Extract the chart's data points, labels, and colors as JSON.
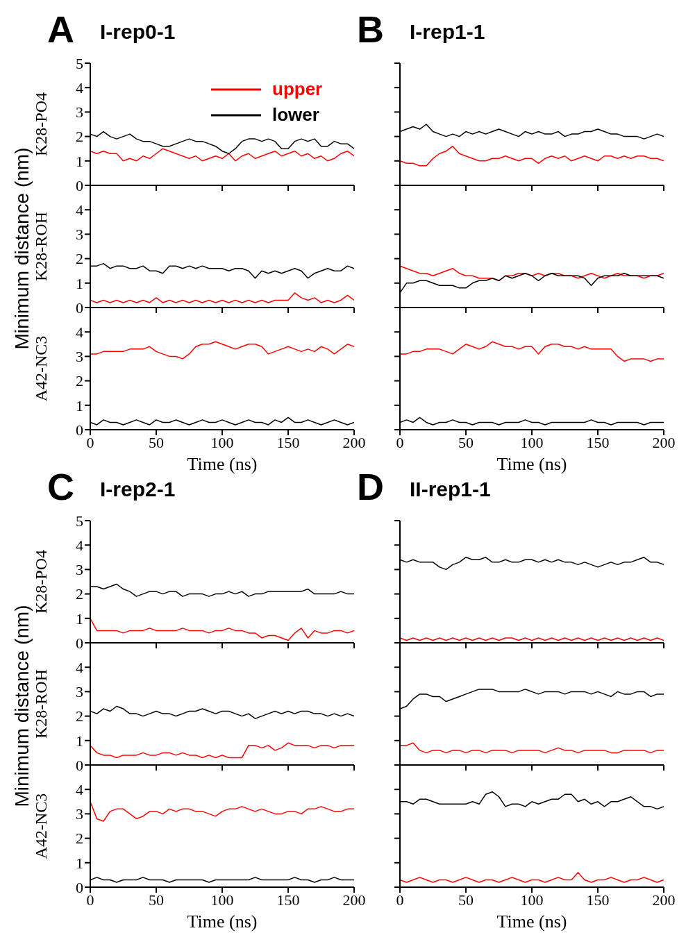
{
  "chart_data": [
    {
      "type": "line",
      "title": "I-rep0-1",
      "annotations": [
        "A",
        "Minimum distance (nm)"
      ],
      "ylabel": "K28-PO4",
      "legend": "top right",
      "tick_labels": "y",
      "x": [
        0,
        5,
        10,
        15,
        20,
        25,
        30,
        35,
        40,
        45,
        50,
        55,
        60,
        65,
        70,
        75,
        80,
        85,
        90,
        95,
        100,
        105,
        110,
        115,
        120,
        125,
        130,
        135,
        140,
        145,
        150,
        155,
        160,
        165,
        170,
        175,
        180,
        185,
        190,
        195,
        200
      ],
      "xlim": [
        0,
        200
      ],
      "xticks": [
        0,
        50,
        100,
        150,
        200
      ],
      "ylim": [
        0,
        5
      ],
      "yticks": [
        0,
        1,
        2,
        3,
        4,
        5
      ],
      "series": [
        {
          "name": "upper",
          "color": "#ff0000",
          "values": [
            1.4,
            1.3,
            1.4,
            1.3,
            1.3,
            1.0,
            1.1,
            1.0,
            1.2,
            1.1,
            1.3,
            1.5,
            1.4,
            1.3,
            1.2,
            1.1,
            1.2,
            1.0,
            1.1,
            1.2,
            1.1,
            1.3,
            1.0,
            1.2,
            1.3,
            1.1,
            1.2,
            1.3,
            1.4,
            1.2,
            1.3,
            1.4,
            1.2,
            1.3,
            1.1,
            1.2,
            1.0,
            1.1,
            1.3,
            1.4,
            1.2
          ]
        },
        {
          "name": "lower",
          "color": "#000000",
          "values": [
            2.1,
            2.0,
            2.2,
            2.0,
            1.9,
            2.0,
            2.1,
            1.9,
            1.8,
            1.8,
            1.7,
            1.6,
            1.6,
            1.7,
            1.8,
            1.9,
            1.8,
            1.8,
            1.7,
            1.6,
            1.4,
            1.3,
            1.5,
            1.8,
            1.9,
            1.9,
            1.8,
            1.9,
            1.8,
            1.5,
            1.5,
            1.8,
            1.9,
            1.8,
            1.9,
            1.6,
            1.6,
            1.8,
            1.7,
            1.7,
            1.5
          ]
        }
      ]
    },
    {
      "type": "line",
      "ylabel": "K28-ROH",
      "tick_labels": "y",
      "x": [
        0,
        5,
        10,
        15,
        20,
        25,
        30,
        35,
        40,
        45,
        50,
        55,
        60,
        65,
        70,
        75,
        80,
        85,
        90,
        95,
        100,
        105,
        110,
        115,
        120,
        125,
        130,
        135,
        140,
        145,
        150,
        155,
        160,
        165,
        170,
        175,
        180,
        185,
        190,
        195,
        200
      ],
      "xlim": [
        0,
        200
      ],
      "xticks": [
        0,
        50,
        100,
        150,
        200
      ],
      "ylim": [
        0,
        5
      ],
      "yticks": [
        0,
        1,
        2,
        3,
        4
      ],
      "series": [
        {
          "color": "#ff0000",
          "values": [
            0.3,
            0.2,
            0.3,
            0.2,
            0.3,
            0.2,
            0.3,
            0.2,
            0.3,
            0.2,
            0.4,
            0.2,
            0.3,
            0.2,
            0.3,
            0.2,
            0.3,
            0.2,
            0.3,
            0.2,
            0.3,
            0.2,
            0.3,
            0.2,
            0.3,
            0.2,
            0.3,
            0.2,
            0.3,
            0.3,
            0.3,
            0.6,
            0.4,
            0.3,
            0.4,
            0.2,
            0.3,
            0.2,
            0.3,
            0.5,
            0.3
          ]
        },
        {
          "color": "#000000",
          "values": [
            1.7,
            1.7,
            1.8,
            1.6,
            1.7,
            1.7,
            1.6,
            1.6,
            1.7,
            1.5,
            1.5,
            1.4,
            1.7,
            1.7,
            1.6,
            1.7,
            1.6,
            1.7,
            1.6,
            1.6,
            1.6,
            1.5,
            1.6,
            1.6,
            1.5,
            1.2,
            1.5,
            1.4,
            1.5,
            1.4,
            1.5,
            1.6,
            1.5,
            1.2,
            1.4,
            1.5,
            1.6,
            1.5,
            1.5,
            1.7,
            1.6
          ]
        }
      ]
    },
    {
      "type": "line",
      "ylabel": "A42-NC3",
      "xlabel": "Time (ns)",
      "x": [
        0,
        5,
        10,
        15,
        20,
        25,
        30,
        35,
        40,
        45,
        50,
        55,
        60,
        65,
        70,
        75,
        80,
        85,
        90,
        95,
        100,
        105,
        110,
        115,
        120,
        125,
        130,
        135,
        140,
        145,
        150,
        155,
        160,
        165,
        170,
        175,
        180,
        185,
        190,
        195,
        200
      ],
      "xlim": [
        0,
        200
      ],
      "xticks": [
        0,
        50,
        100,
        150,
        200
      ],
      "ylim": [
        0,
        5
      ],
      "yticks": [
        0,
        1,
        2,
        3,
        4
      ],
      "series": [
        {
          "color": "#ff0000",
          "values": [
            3.1,
            3.1,
            3.2,
            3.2,
            3.2,
            3.2,
            3.3,
            3.3,
            3.3,
            3.4,
            3.2,
            3.1,
            3.0,
            3.0,
            2.9,
            3.1,
            3.4,
            3.5,
            3.5,
            3.6,
            3.5,
            3.4,
            3.3,
            3.4,
            3.5,
            3.5,
            3.4,
            3.1,
            3.2,
            3.3,
            3.4,
            3.3,
            3.2,
            3.3,
            3.2,
            3.4,
            3.3,
            3.1,
            3.3,
            3.5,
            3.4
          ]
        },
        {
          "color": "#000000",
          "values": [
            0.3,
            0.2,
            0.4,
            0.3,
            0.3,
            0.2,
            0.3,
            0.4,
            0.3,
            0.2,
            0.4,
            0.3,
            0.3,
            0.4,
            0.3,
            0.2,
            0.3,
            0.4,
            0.3,
            0.3,
            0.4,
            0.3,
            0.2,
            0.3,
            0.4,
            0.3,
            0.3,
            0.2,
            0.4,
            0.3,
            0.5,
            0.3,
            0.3,
            0.4,
            0.3,
            0.2,
            0.3,
            0.4,
            0.3,
            0.2,
            0.3
          ]
        }
      ]
    },
    {
      "type": "line",
      "title": "I-rep1-1",
      "annotations": [
        "B"
      ],
      "tick_labels": false,
      "x": [
        0,
        5,
        10,
        15,
        20,
        25,
        30,
        35,
        40,
        45,
        50,
        55,
        60,
        65,
        70,
        75,
        80,
        85,
        90,
        95,
        100,
        105,
        110,
        115,
        120,
        125,
        130,
        135,
        140,
        145,
        150,
        155,
        160,
        165,
        170,
        175,
        180,
        185,
        190,
        195,
        200
      ],
      "xlim": [
        0,
        200
      ],
      "xticks": [
        0,
        50,
        100,
        150,
        200
      ],
      "ylim": [
        0,
        5
      ],
      "yticks": [
        0,
        1,
        2,
        3,
        4,
        5
      ],
      "series": [
        {
          "color": "#ff0000",
          "values": [
            1.0,
            0.9,
            0.9,
            0.8,
            0.8,
            1.1,
            1.3,
            1.4,
            1.6,
            1.3,
            1.2,
            1.1,
            1.0,
            1.0,
            1.1,
            1.1,
            1.2,
            1.1,
            1.0,
            1.1,
            1.1,
            0.9,
            1.1,
            1.2,
            1.1,
            1.2,
            1.0,
            1.1,
            1.2,
            1.1,
            1.0,
            1.2,
            1.2,
            1.1,
            1.2,
            1.1,
            1.2,
            1.2,
            1.1,
            1.1,
            1.0
          ]
        },
        {
          "color": "#000000",
          "values": [
            2.2,
            2.3,
            2.4,
            2.3,
            2.5,
            2.2,
            2.1,
            2.0,
            2.1,
            2.0,
            2.2,
            2.1,
            2.2,
            2.1,
            2.2,
            2.3,
            2.2,
            2.1,
            2.0,
            2.2,
            2.1,
            2.2,
            2.1,
            2.1,
            2.2,
            2.0,
            2.1,
            2.1,
            2.2,
            2.2,
            2.3,
            2.2,
            2.1,
            2.1,
            2.0,
            2.0,
            2.0,
            1.9,
            2.0,
            2.1,
            2.0
          ]
        }
      ]
    },
    {
      "type": "line",
      "tick_labels": false,
      "x": [
        0,
        5,
        10,
        15,
        20,
        25,
        30,
        35,
        40,
        45,
        50,
        55,
        60,
        65,
        70,
        75,
        80,
        85,
        90,
        95,
        100,
        105,
        110,
        115,
        120,
        125,
        130,
        135,
        140,
        145,
        150,
        155,
        160,
        165,
        170,
        175,
        180,
        185,
        190,
        195,
        200
      ],
      "xlim": [
        0,
        200
      ],
      "xticks": [
        0,
        50,
        100,
        150,
        200
      ],
      "ylim": [
        0,
        5
      ],
      "yticks": [
        0,
        1,
        2,
        3,
        4,
        5
      ],
      "series": [
        {
          "color": "#ff0000",
          "values": [
            1.7,
            1.6,
            1.5,
            1.4,
            1.4,
            1.3,
            1.4,
            1.5,
            1.6,
            1.4,
            1.3,
            1.3,
            1.2,
            1.2,
            1.2,
            1.1,
            1.3,
            1.3,
            1.4,
            1.4,
            1.3,
            1.4,
            1.3,
            1.4,
            1.4,
            1.3,
            1.3,
            1.2,
            1.3,
            1.4,
            1.3,
            1.2,
            1.3,
            1.4,
            1.3,
            1.3,
            1.3,
            1.2,
            1.3,
            1.3,
            1.4
          ]
        },
        {
          "color": "#000000",
          "values": [
            0.6,
            1.0,
            1.0,
            1.1,
            1.1,
            1.0,
            0.9,
            0.9,
            0.9,
            0.8,
            0.8,
            1.0,
            1.1,
            1.1,
            1.2,
            1.1,
            1.3,
            1.2,
            1.3,
            1.4,
            1.3,
            1.1,
            1.3,
            1.4,
            1.3,
            1.3,
            1.3,
            1.3,
            1.2,
            0.9,
            1.2,
            1.3,
            1.3,
            1.3,
            1.4,
            1.3,
            1.3,
            1.3,
            1.3,
            1.3,
            1.2
          ]
        }
      ]
    },
    {
      "type": "line",
      "xlabel": "Time (ns)",
      "tick_labels": "x",
      "x": [
        0,
        5,
        10,
        15,
        20,
        25,
        30,
        35,
        40,
        45,
        50,
        55,
        60,
        65,
        70,
        75,
        80,
        85,
        90,
        95,
        100,
        105,
        110,
        115,
        120,
        125,
        130,
        135,
        140,
        145,
        150,
        155,
        160,
        165,
        170,
        175,
        180,
        185,
        190,
        195,
        200
      ],
      "xlim": [
        0,
        200
      ],
      "xticks": [
        0,
        50,
        100,
        150,
        200
      ],
      "ylim": [
        0,
        5
      ],
      "yticks": [
        0,
        1,
        2,
        3,
        4,
        5
      ],
      "series": [
        {
          "color": "#ff0000",
          "values": [
            3.1,
            3.1,
            3.2,
            3.2,
            3.3,
            3.3,
            3.3,
            3.2,
            3.1,
            3.3,
            3.5,
            3.4,
            3.3,
            3.4,
            3.6,
            3.5,
            3.4,
            3.4,
            3.3,
            3.4,
            3.4,
            3.1,
            3.4,
            3.5,
            3.5,
            3.4,
            3.4,
            3.3,
            3.4,
            3.3,
            3.3,
            3.3,
            3.3,
            3.0,
            2.8,
            2.9,
            2.9,
            2.9,
            2.8,
            2.9,
            2.9
          ]
        },
        {
          "color": "#000000",
          "values": [
            0.3,
            0.4,
            0.3,
            0.5,
            0.3,
            0.2,
            0.3,
            0.3,
            0.4,
            0.3,
            0.3,
            0.2,
            0.3,
            0.3,
            0.3,
            0.2,
            0.3,
            0.3,
            0.3,
            0.4,
            0.3,
            0.3,
            0.2,
            0.3,
            0.3,
            0.3,
            0.3,
            0.3,
            0.3,
            0.4,
            0.3,
            0.3,
            0.2,
            0.3,
            0.3,
            0.3,
            0.3,
            0.2,
            0.3,
            0.3,
            0.3
          ]
        }
      ]
    },
    {
      "type": "line",
      "title": "I-rep2-1",
      "annotations": [
        "C",
        "Minimum distance (nm)"
      ],
      "ylabel": "K28-PO4",
      "tick_labels": "y",
      "x": [
        0,
        5,
        10,
        15,
        20,
        25,
        30,
        35,
        40,
        45,
        50,
        55,
        60,
        65,
        70,
        75,
        80,
        85,
        90,
        95,
        100,
        105,
        110,
        115,
        120,
        125,
        130,
        135,
        140,
        145,
        150,
        155,
        160,
        165,
        170,
        175,
        180,
        185,
        190,
        195,
        200
      ],
      "xlim": [
        0,
        200
      ],
      "xticks": [
        0,
        50,
        100,
        150,
        200
      ],
      "ylim": [
        0,
        5
      ],
      "yticks": [
        0,
        1,
        2,
        3,
        4,
        5
      ],
      "series": [
        {
          "color": "#ff0000",
          "values": [
            1.0,
            0.5,
            0.5,
            0.5,
            0.5,
            0.4,
            0.5,
            0.5,
            0.5,
            0.6,
            0.5,
            0.5,
            0.5,
            0.5,
            0.6,
            0.5,
            0.5,
            0.5,
            0.4,
            0.5,
            0.5,
            0.6,
            0.5,
            0.5,
            0.4,
            0.4,
            0.2,
            0.3,
            0.3,
            0.2,
            0.1,
            0.4,
            0.6,
            0.2,
            0.5,
            0.4,
            0.4,
            0.5,
            0.5,
            0.4,
            0.5
          ]
        },
        {
          "color": "#000000",
          "values": [
            2.3,
            2.3,
            2.2,
            2.3,
            2.4,
            2.2,
            2.1,
            1.9,
            2.0,
            2.1,
            2.1,
            2.0,
            2.1,
            2.1,
            1.9,
            2.0,
            2.0,
            2.0,
            1.9,
            2.0,
            2.0,
            2.1,
            2.0,
            2.1,
            1.9,
            2.0,
            2.0,
            2.1,
            2.1,
            2.1,
            2.1,
            2.1,
            2.1,
            2.2,
            2.0,
            2.0,
            2.0,
            2.0,
            2.1,
            2.0,
            2.0
          ]
        }
      ]
    },
    {
      "type": "line",
      "ylabel": "K28-ROH",
      "tick_labels": "y",
      "x": [
        0,
        5,
        10,
        15,
        20,
        25,
        30,
        35,
        40,
        45,
        50,
        55,
        60,
        65,
        70,
        75,
        80,
        85,
        90,
        95,
        100,
        105,
        110,
        115,
        120,
        125,
        130,
        135,
        140,
        145,
        150,
        155,
        160,
        165,
        170,
        175,
        180,
        185,
        190,
        195,
        200
      ],
      "xlim": [
        0,
        200
      ],
      "xticks": [
        0,
        50,
        100,
        150,
        200
      ],
      "ylim": [
        0,
        5
      ],
      "yticks": [
        0,
        1,
        2,
        3,
        4
      ],
      "series": [
        {
          "color": "#ff0000",
          "values": [
            0.8,
            0.5,
            0.4,
            0.4,
            0.3,
            0.4,
            0.4,
            0.4,
            0.5,
            0.4,
            0.4,
            0.5,
            0.5,
            0.4,
            0.5,
            0.4,
            0.4,
            0.3,
            0.4,
            0.3,
            0.4,
            0.3,
            0.3,
            0.3,
            0.8,
            0.8,
            0.7,
            0.8,
            0.6,
            0.7,
            0.9,
            0.8,
            0.8,
            0.8,
            0.7,
            0.8,
            0.8,
            0.7,
            0.8,
            0.8,
            0.8
          ]
        },
        {
          "color": "#000000",
          "values": [
            2.2,
            2.1,
            2.3,
            2.2,
            2.4,
            2.3,
            2.1,
            2.1,
            2.0,
            2.1,
            2.2,
            2.1,
            2.1,
            2.0,
            2.1,
            2.2,
            2.2,
            2.3,
            2.2,
            2.1,
            2.2,
            2.2,
            2.1,
            2.0,
            2.1,
            1.9,
            2.0,
            2.1,
            2.2,
            2.1,
            2.2,
            2.1,
            2.2,
            2.2,
            2.1,
            2.1,
            2.0,
            2.1,
            2.0,
            2.1,
            2.0
          ]
        }
      ]
    },
    {
      "type": "line",
      "ylabel": "A42-NC3",
      "xlabel": "Time (ns)",
      "x": [
        0,
        5,
        10,
        15,
        20,
        25,
        30,
        35,
        40,
        45,
        50,
        55,
        60,
        65,
        70,
        75,
        80,
        85,
        90,
        95,
        100,
        105,
        110,
        115,
        120,
        125,
        130,
        135,
        140,
        145,
        150,
        155,
        160,
        165,
        170,
        175,
        180,
        185,
        190,
        195,
        200
      ],
      "xlim": [
        0,
        200
      ],
      "xticks": [
        0,
        50,
        100,
        150,
        200
      ],
      "ylim": [
        0,
        5
      ],
      "yticks": [
        0,
        1,
        2,
        3,
        4
      ],
      "series": [
        {
          "color": "#ff0000",
          "values": [
            3.5,
            2.8,
            2.7,
            3.1,
            3.2,
            3.2,
            3.0,
            2.8,
            2.9,
            3.1,
            3.1,
            3.0,
            3.2,
            3.1,
            3.2,
            3.2,
            3.1,
            3.1,
            3.0,
            2.9,
            3.1,
            3.2,
            3.2,
            3.3,
            3.2,
            3.1,
            3.2,
            3.1,
            3.0,
            3.0,
            3.1,
            3.1,
            3.0,
            3.2,
            3.2,
            3.3,
            3.2,
            3.1,
            3.1,
            3.2,
            3.2
          ]
        },
        {
          "color": "#000000",
          "values": [
            0.3,
            0.4,
            0.3,
            0.3,
            0.2,
            0.3,
            0.3,
            0.3,
            0.4,
            0.3,
            0.3,
            0.3,
            0.2,
            0.3,
            0.3,
            0.3,
            0.3,
            0.3,
            0.2,
            0.3,
            0.3,
            0.3,
            0.3,
            0.3,
            0.3,
            0.4,
            0.3,
            0.3,
            0.3,
            0.3,
            0.3,
            0.4,
            0.3,
            0.3,
            0.2,
            0.3,
            0.3,
            0.4,
            0.3,
            0.3,
            0.3
          ]
        }
      ]
    },
    {
      "type": "line",
      "title": "II-rep1-1",
      "annotations": [
        "D"
      ],
      "tick_labels": false,
      "x": [
        0,
        5,
        10,
        15,
        20,
        25,
        30,
        35,
        40,
        45,
        50,
        55,
        60,
        65,
        70,
        75,
        80,
        85,
        90,
        95,
        100,
        105,
        110,
        115,
        120,
        125,
        130,
        135,
        140,
        145,
        150,
        155,
        160,
        165,
        170,
        175,
        180,
        185,
        190,
        195,
        200
      ],
      "xlim": [
        0,
        200
      ],
      "xticks": [
        0,
        50,
        100,
        150,
        200
      ],
      "ylim": [
        0,
        5
      ],
      "yticks": [
        0,
        1,
        2,
        3,
        4,
        5
      ],
      "series": [
        {
          "color": "#ff0000",
          "values": [
            0.2,
            0.1,
            0.2,
            0.1,
            0.2,
            0.1,
            0.2,
            0.1,
            0.2,
            0.1,
            0.2,
            0.1,
            0.2,
            0.1,
            0.2,
            0.1,
            0.2,
            0.2,
            0.1,
            0.2,
            0.1,
            0.2,
            0.1,
            0.2,
            0.1,
            0.2,
            0.1,
            0.2,
            0.1,
            0.2,
            0.1,
            0.2,
            0.1,
            0.2,
            0.1,
            0.2,
            0.1,
            0.2,
            0.1,
            0.2,
            0.1
          ]
        },
        {
          "color": "#000000",
          "values": [
            3.4,
            3.3,
            3.4,
            3.3,
            3.3,
            3.3,
            3.1,
            3.0,
            3.2,
            3.3,
            3.5,
            3.4,
            3.4,
            3.5,
            3.3,
            3.3,
            3.4,
            3.3,
            3.3,
            3.4,
            3.4,
            3.3,
            3.4,
            3.3,
            3.4,
            3.3,
            3.3,
            3.2,
            3.3,
            3.2,
            3.1,
            3.2,
            3.3,
            3.2,
            3.3,
            3.3,
            3.4,
            3.5,
            3.3,
            3.3,
            3.2
          ]
        }
      ]
    },
    {
      "type": "line",
      "tick_labels": false,
      "x": [
        0,
        5,
        10,
        15,
        20,
        25,
        30,
        35,
        40,
        45,
        50,
        55,
        60,
        65,
        70,
        75,
        80,
        85,
        90,
        95,
        100,
        105,
        110,
        115,
        120,
        125,
        130,
        135,
        140,
        145,
        150,
        155,
        160,
        165,
        170,
        175,
        180,
        185,
        190,
        195,
        200
      ],
      "xlim": [
        0,
        200
      ],
      "xticks": [
        0,
        50,
        100,
        150,
        200
      ],
      "ylim": [
        0,
        5
      ],
      "yticks": [
        0,
        1,
        2,
        3,
        4,
        5
      ],
      "series": [
        {
          "color": "#ff0000",
          "values": [
            0.8,
            0.8,
            0.9,
            0.6,
            0.5,
            0.6,
            0.6,
            0.5,
            0.6,
            0.6,
            0.5,
            0.6,
            0.6,
            0.5,
            0.6,
            0.6,
            0.6,
            0.5,
            0.6,
            0.6,
            0.6,
            0.6,
            0.5,
            0.6,
            0.7,
            0.6,
            0.6,
            0.5,
            0.6,
            0.6,
            0.6,
            0.6,
            0.5,
            0.5,
            0.6,
            0.6,
            0.6,
            0.6,
            0.5,
            0.6,
            0.6
          ]
        },
        {
          "color": "#000000",
          "values": [
            2.3,
            2.4,
            2.7,
            2.9,
            2.9,
            2.8,
            2.8,
            2.6,
            2.7,
            2.8,
            2.9,
            3.0,
            3.1,
            3.1,
            3.1,
            3.0,
            3.0,
            3.0,
            3.0,
            3.1,
            3.0,
            2.9,
            3.0,
            3.0,
            3.0,
            2.9,
            3.0,
            3.0,
            3.0,
            2.9,
            3.0,
            2.9,
            2.8,
            3.0,
            2.9,
            2.9,
            3.0,
            3.0,
            2.8,
            2.9,
            2.9
          ]
        }
      ]
    },
    {
      "type": "line",
      "xlabel": "Time (ns)",
      "tick_labels": "x",
      "x": [
        0,
        5,
        10,
        15,
        20,
        25,
        30,
        35,
        40,
        45,
        50,
        55,
        60,
        65,
        70,
        75,
        80,
        85,
        90,
        95,
        100,
        105,
        110,
        115,
        120,
        125,
        130,
        135,
        140,
        145,
        150,
        155,
        160,
        165,
        170,
        175,
        180,
        185,
        190,
        195,
        200
      ],
      "xlim": [
        0,
        200
      ],
      "xticks": [
        0,
        50,
        100,
        150,
        200
      ],
      "ylim": [
        0,
        5
      ],
      "yticks": [
        0,
        1,
        2,
        3,
        4,
        5
      ],
      "series": [
        {
          "color": "#ff0000",
          "values": [
            0.3,
            0.2,
            0.3,
            0.4,
            0.3,
            0.2,
            0.3,
            0.3,
            0.2,
            0.3,
            0.4,
            0.3,
            0.2,
            0.3,
            0.3,
            0.2,
            0.3,
            0.4,
            0.3,
            0.2,
            0.3,
            0.3,
            0.2,
            0.3,
            0.4,
            0.3,
            0.3,
            0.6,
            0.3,
            0.2,
            0.3,
            0.3,
            0.4,
            0.3,
            0.2,
            0.3,
            0.3,
            0.4,
            0.3,
            0.2,
            0.3
          ]
        },
        {
          "color": "#000000",
          "values": [
            3.5,
            3.5,
            3.4,
            3.6,
            3.6,
            3.5,
            3.4,
            3.4,
            3.4,
            3.4,
            3.4,
            3.5,
            3.4,
            3.8,
            3.9,
            3.7,
            3.3,
            3.4,
            3.4,
            3.3,
            3.5,
            3.4,
            3.5,
            3.6,
            3.6,
            3.8,
            3.8,
            3.5,
            3.6,
            3.4,
            3.5,
            3.3,
            3.5,
            3.5,
            3.6,
            3.7,
            3.5,
            3.3,
            3.3,
            3.2,
            3.3
          ]
        }
      ]
    }
  ]
}
